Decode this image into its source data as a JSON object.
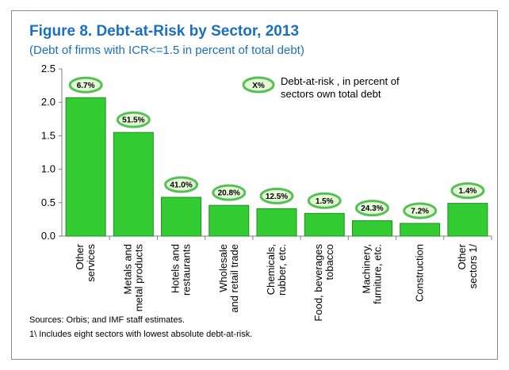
{
  "chart_data": {
    "type": "bar",
    "title": "Figure 8. Debt-at-Risk by Sector, 2013",
    "subtitle": "(Debt of firms with ICR<=1.5 in percent of total debt)",
    "categories": [
      [
        "Other",
        "services"
      ],
      [
        "Metals and",
        "metal products"
      ],
      [
        "Hotels and",
        "restaurants"
      ],
      [
        "Wholesale",
        "and retail trade"
      ],
      [
        "Chemicals,",
        "rubber, etc."
      ],
      [
        "Food, beverages",
        "tobacco"
      ],
      [
        "Machinery,",
        "furniture, etc."
      ],
      [
        "Construction"
      ],
      [
        "Other",
        "sectors 1/"
      ]
    ],
    "values": [
      2.07,
      1.55,
      0.58,
      0.46,
      0.41,
      0.34,
      0.23,
      0.19,
      0.49
    ],
    "data_labels": [
      "6.7%",
      "51.5%",
      "41.0%",
      "20.8%",
      "12.5%",
      "1.5%",
      "24.3%",
      "7.2%",
      "1.4%"
    ],
    "ylim": [
      0,
      2.5
    ],
    "yticks": [
      "0.0",
      "0.5",
      "1.0",
      "1.5",
      "2.0",
      "2.5"
    ],
    "legend": {
      "placement": "top-center",
      "marker_text": "X%",
      "text_lines": [
        "Debt-at-risk , in percent of",
        "sectors own total debt"
      ]
    },
    "grid": false,
    "colors": {
      "bar_fill": "#33cc33",
      "bar_stroke": "#1f8f1f",
      "label_oval_fill": "#e4f7d6",
      "label_oval_stroke": "#55c055",
      "title": "#1a6fc0"
    }
  },
  "notes": {
    "source": "Sources: Orbis; and IMF staff estimates.",
    "footnote": "1\\ Includes eight sectors with lowest absolute debt-at-risk."
  }
}
